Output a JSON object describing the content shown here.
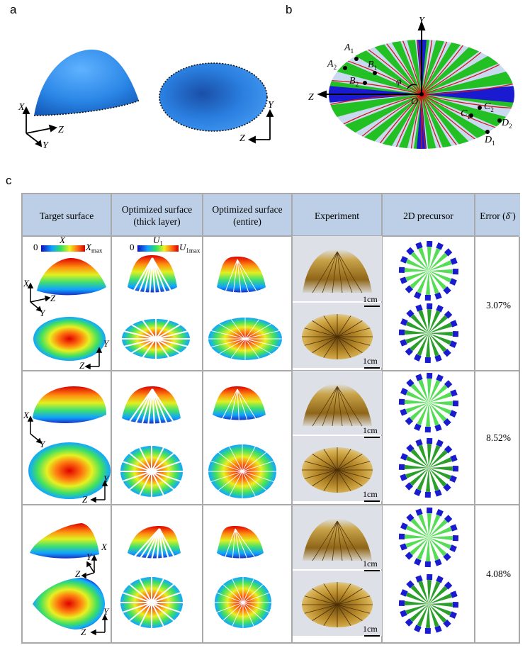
{
  "panels": {
    "a": "a",
    "b": "b",
    "c": "c"
  },
  "panel_a": {
    "axes_left": {
      "x": "X",
      "y": "Y",
      "z": "Z"
    },
    "axes_right": {
      "y": "Y",
      "z": "Z"
    }
  },
  "panel_b": {
    "axis_y": "Y",
    "axis_z": "Z",
    "origin": "O",
    "angle": "φ",
    "points": {
      "A1": "A",
      "A1_sub": "1",
      "A2": "A",
      "A2_sub": "2",
      "B1": "B",
      "B1_sub": "1",
      "B2": "B",
      "B2_sub": "2",
      "C1": "C",
      "C1_sub": "1",
      "C2": "C",
      "C2_sub": "2",
      "D1": "D",
      "D1_sub": "1",
      "D2": "D",
      "D2_sub": "2"
    }
  },
  "table": {
    "headers": [
      "Target surface",
      "Optimized surface (thick layer)",
      "Optimized surface (entire)",
      "Experiment",
      "2D precursor",
      "Error ("
    ],
    "header_thick_line1": "Optimized surface",
    "header_thick_line2": "(thick layer)",
    "header_entire_line1": "Optimized surface",
    "header_entire_line2": "(entire)",
    "error_symbol": "δ̄",
    "error_close": " )",
    "colorbar_x": {
      "zero": "0",
      "label": "X",
      "max": "X",
      "max_sub": "max"
    },
    "colorbar_u": {
      "zero": "0",
      "label": "U",
      "label_sub": "1",
      "max": "U",
      "max_sub": "1max"
    },
    "scale": "1cm",
    "rows": [
      {
        "error": "3.07%"
      },
      {
        "error": "8.52%"
      },
      {
        "error": "4.08%"
      }
    ],
    "axis_labels": {
      "x": "X",
      "y": "Y",
      "z": "Z"
    }
  },
  "colors": {
    "header_bg": "#bccfe6",
    "grid": "#a9a9a9",
    "surface_blue": "#1f7bdc",
    "strip_green": "#22c022",
    "strip_blue": "#1a1ad0",
    "curve_red": "#d01818",
    "photo_amber": "#b88a2a"
  }
}
